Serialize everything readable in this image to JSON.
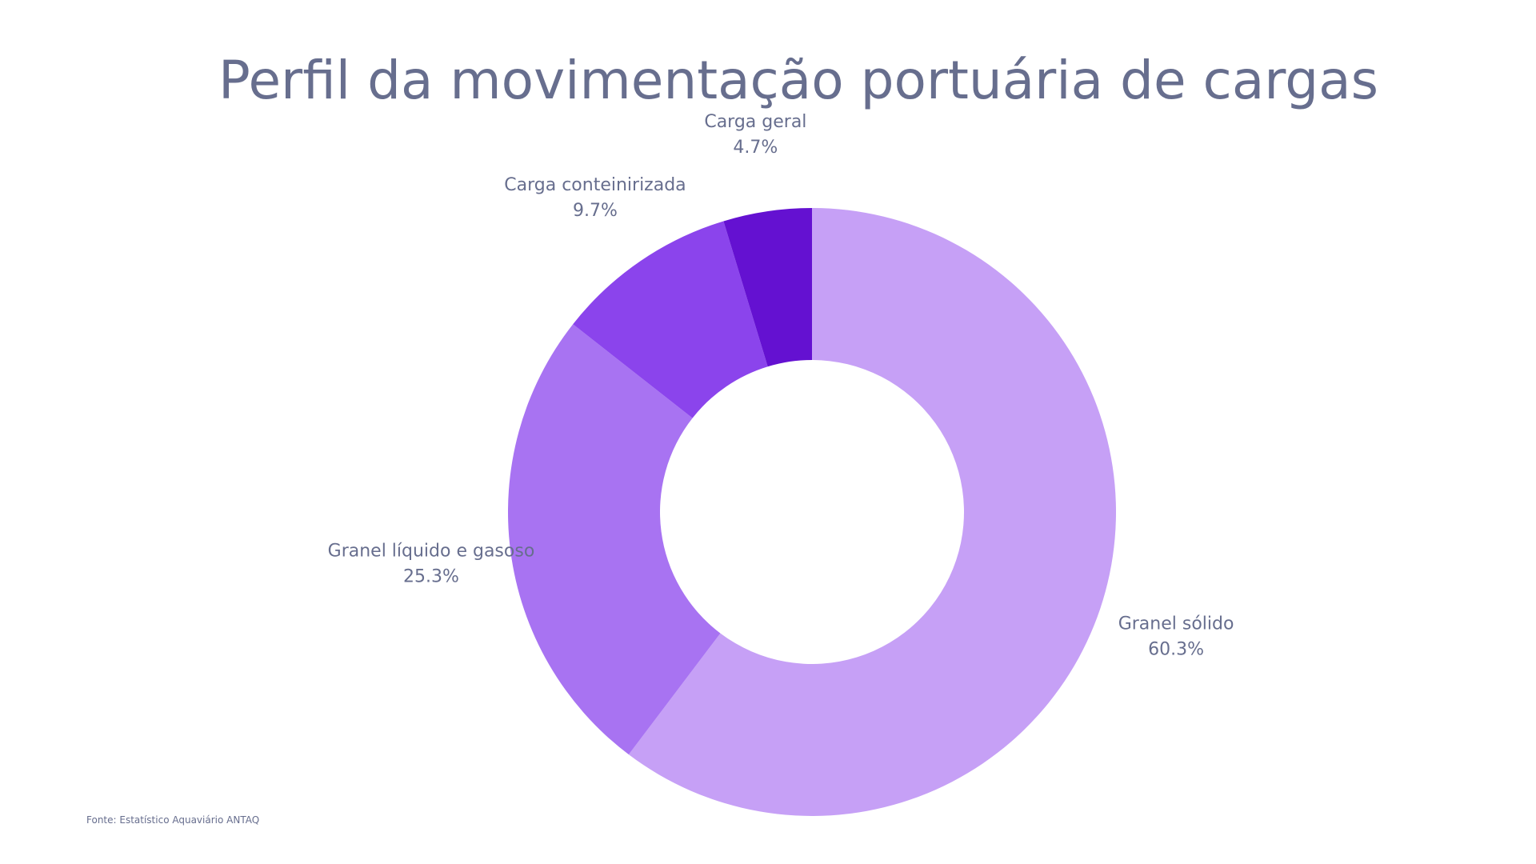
{
  "chart_data": {
    "type": "pie",
    "title": "Perfil da movimentação portuária de cargas",
    "categories": [
      "Granel sólido",
      "Granel líquido e gasoso",
      "Carga conteinirizada",
      "Carga geral"
    ],
    "values": [
      60.3,
      25.3,
      9.7,
      4.7
    ],
    "value_labels": [
      "60.3%",
      "25.3%",
      "9.7%",
      "4.7%"
    ],
    "unit": "%",
    "colors": [
      "#c6a0f6",
      "#a873f2",
      "#8b44ec",
      "#6411d1"
    ],
    "donut": true,
    "legend": "none",
    "grid": false
  },
  "source": "Fonte: Estatístico Aquaviário ANTAQ"
}
